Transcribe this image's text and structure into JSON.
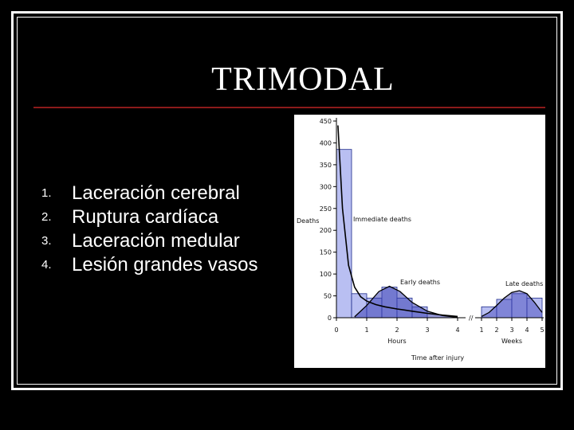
{
  "slide": {
    "title": "TRIMODAL",
    "items": [
      {
        "num": "1.",
        "text": "Laceración cerebral"
      },
      {
        "num": "2.",
        "text": "Ruptura cardíaca"
      },
      {
        "num": "3.",
        "text": "Laceración medular"
      },
      {
        "num": "4.",
        "text": "Lesión grandes vasos"
      }
    ],
    "colors": {
      "background": "#000000",
      "rule": "#8b1a1a",
      "bar_light": "#b9bff2",
      "bar_dark": "#3b3fb5"
    }
  },
  "chart_data": {
    "type": "area",
    "ylabel": "Deaths",
    "xlabel": "Time after injury",
    "ylim": [
      0,
      450
    ],
    "yticks": [
      0,
      50,
      100,
      150,
      200,
      250,
      300,
      350,
      400,
      450
    ],
    "ytick_labels": [
      "0",
      "50",
      "100",
      "150",
      "200",
      "250",
      "300",
      "350",
      "400",
      "450"
    ],
    "hours_axis": {
      "label": "Hours",
      "ticks": [
        "0",
        "1",
        "2",
        "3",
        "4"
      ]
    },
    "weeks_axis": {
      "label": "Weeks",
      "ticks": [
        "1",
        "2",
        "3",
        "4",
        "5"
      ]
    },
    "annotations": [
      "Immediate deaths",
      "Early deaths",
      "Late deaths"
    ],
    "bars": [
      {
        "x_start": 0,
        "x_end": 0.5,
        "value": 385
      },
      {
        "x_start": 0.5,
        "x_end": 1.0,
        "value": 55
      },
      {
        "x_start": 1.0,
        "x_end": 1.5,
        "value": 45
      },
      {
        "x_start": 1.5,
        "x_end": 2.0,
        "value": 70
      },
      {
        "x_start": 2.0,
        "x_end": 2.5,
        "value": 45
      },
      {
        "x_start": 2.5,
        "x_end": 3.0,
        "value": 25
      }
    ],
    "week_bars": [
      {
        "x_start": 1.0,
        "x_end": 2.0,
        "value": 25
      },
      {
        "x_start": 2.0,
        "x_end": 3.0,
        "value": 42
      },
      {
        "x_start": 3.0,
        "x_end": 4.0,
        "value": 55
      },
      {
        "x_start": 4.0,
        "x_end": 5.0,
        "value": 45
      }
    ],
    "immediate_curve": {
      "x": [
        0.05,
        0.2,
        0.4,
        0.6,
        0.8,
        1.0,
        1.3,
        1.6,
        2.0,
        2.5,
        3.0,
        3.5,
        4.0
      ],
      "y": [
        440,
        250,
        120,
        70,
        48,
        38,
        30,
        25,
        20,
        15,
        10,
        6,
        3
      ]
    },
    "early_curve": {
      "x": [
        0.6,
        1.0,
        1.4,
        1.75,
        2.1,
        2.5,
        3.0,
        3.5,
        4.0
      ],
      "y": [
        2,
        28,
        60,
        72,
        60,
        35,
        15,
        5,
        1
      ]
    },
    "late_curve": {
      "x": [
        1.0,
        1.5,
        2.0,
        2.5,
        3.0,
        3.5,
        4.0,
        4.5,
        5.0
      ],
      "y": [
        3,
        12,
        28,
        45,
        58,
        62,
        55,
        35,
        12
      ]
    },
    "grid": false,
    "legend": "none"
  }
}
